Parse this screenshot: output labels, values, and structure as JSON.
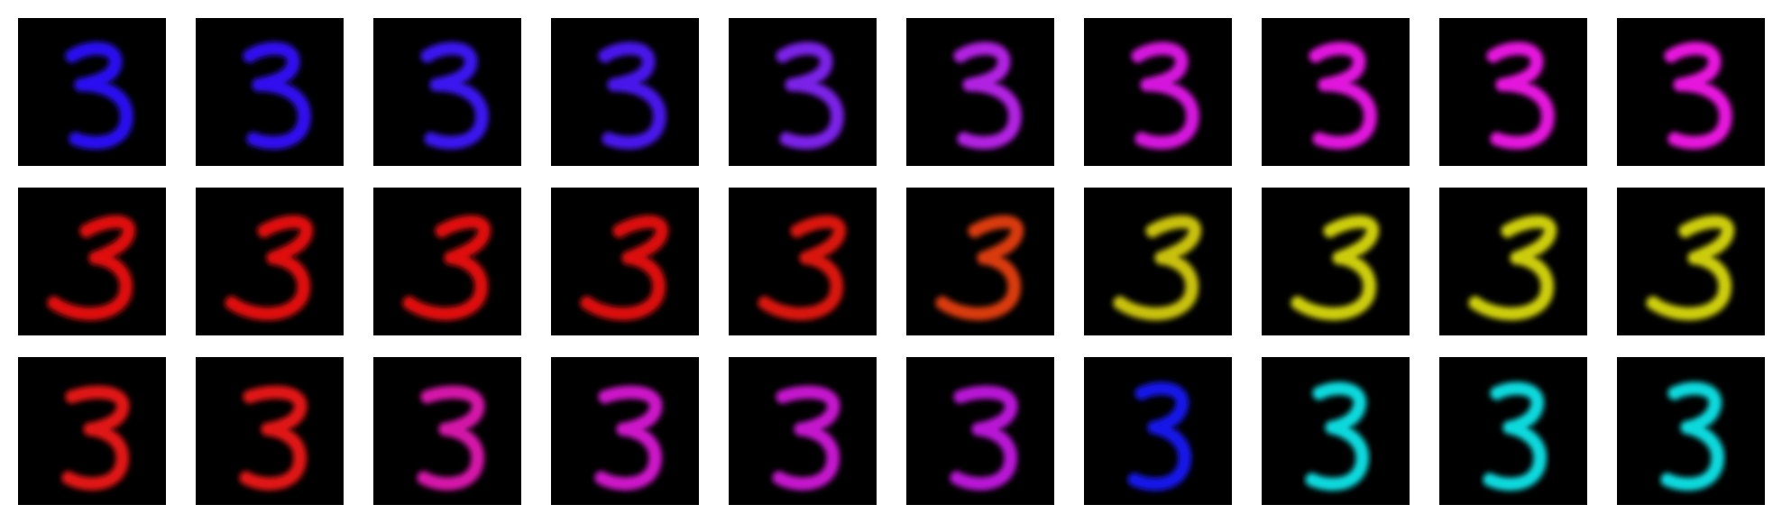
{
  "rows": [
    {
      "tiles": [
        {
          "digit": "3",
          "color": "#2a10f0",
          "style": "a"
        },
        {
          "digit": "3",
          "color": "#3010f0",
          "style": "a"
        },
        {
          "digit": "3",
          "color": "#3a14ee",
          "style": "a"
        },
        {
          "digit": "3",
          "color": "#4a18ea",
          "style": "a"
        },
        {
          "digit": "3",
          "color": "#7a20e6",
          "style": "a"
        },
        {
          "digit": "3",
          "color": "#b020e0",
          "style": "a"
        },
        {
          "digit": "3",
          "color": "#d418dc",
          "style": "a"
        },
        {
          "digit": "3",
          "color": "#e014dc",
          "style": "a"
        },
        {
          "digit": "3",
          "color": "#e412dc",
          "style": "a"
        },
        {
          "digit": "3",
          "color": "#e612dc",
          "style": "a"
        }
      ]
    },
    {
      "tiles": [
        {
          "digit": "3",
          "color": "#e01010",
          "style": "b"
        },
        {
          "digit": "3",
          "color": "#e01010",
          "style": "b"
        },
        {
          "digit": "3",
          "color": "#e01010",
          "style": "b"
        },
        {
          "digit": "3",
          "color": "#dc1010",
          "style": "b"
        },
        {
          "digit": "3",
          "color": "#d81210",
          "style": "b"
        },
        {
          "digit": "3",
          "color": "#d83a10",
          "style": "b"
        },
        {
          "digit": "3",
          "color": "#c8c010",
          "style": "b"
        },
        {
          "digit": "3",
          "color": "#cccc10",
          "style": "b"
        },
        {
          "digit": "3",
          "color": "#cccc10",
          "style": "b"
        },
        {
          "digit": "3",
          "color": "#cccc10",
          "style": "b"
        }
      ]
    },
    {
      "tiles": [
        {
          "digit": "3",
          "color": "#e01414",
          "style": "c"
        },
        {
          "digit": "3",
          "color": "#e01418",
          "style": "c"
        },
        {
          "digit": "3",
          "color": "#d418a8",
          "style": "c"
        },
        {
          "digit": "3",
          "color": "#cc18c8",
          "style": "c"
        },
        {
          "digit": "3",
          "color": "#c418cc",
          "style": "c"
        },
        {
          "digit": "3",
          "color": "#b818d4",
          "style": "c"
        },
        {
          "digit": "3",
          "color": "#1818e8",
          "style": "d"
        },
        {
          "digit": "3",
          "color": "#10d8dc",
          "style": "d"
        },
        {
          "digit": "3",
          "color": "#10d8dc",
          "style": "d"
        },
        {
          "digit": "3",
          "color": "#10d8dc",
          "style": "d"
        }
      ]
    }
  ]
}
